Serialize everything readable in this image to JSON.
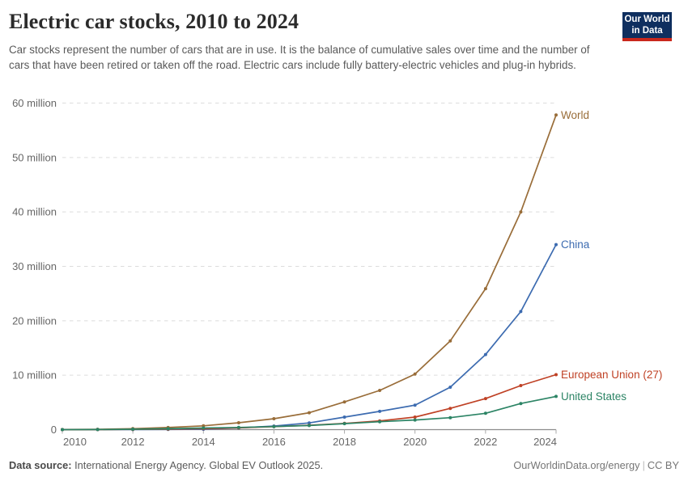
{
  "header": {
    "title": "Electric car stocks, 2010 to 2024",
    "subtitle": "Car stocks represent the number of cars that are in use. It is the balance of cumulative sales over time and the number of cars that have been retired or taken off the road. Electric cars include fully battery-electric vehicles and plug-in hybrids."
  },
  "logo": {
    "line1": "Our World",
    "line2": "in Data",
    "bg_color": "#0f2f5f",
    "bar_color": "#c9281c"
  },
  "footer": {
    "source_label": "Data source:",
    "source_text": " International Energy Agency. Global EV Outlook 2025.",
    "link": "OurWorldinData.org/energy",
    "separator": "|",
    "license": "CC BY"
  },
  "chart_data": {
    "type": "line",
    "title": "Electric car stocks, 2010 to 2024",
    "unit": "million vehicles",
    "x": [
      2010,
      2011,
      2012,
      2013,
      2014,
      2015,
      2016,
      2017,
      2018,
      2019,
      2020,
      2021,
      2022,
      2023,
      2024
    ],
    "xlim": [
      2010,
      2024
    ],
    "ylim": [
      0,
      60
    ],
    "xticks": [
      2010,
      2012,
      2014,
      2016,
      2018,
      2020,
      2022,
      2024
    ],
    "yticks": [
      {
        "value": 0,
        "label": "0"
      },
      {
        "value": 10,
        "label": "10 million"
      },
      {
        "value": 20,
        "label": "20 million"
      },
      {
        "value": 30,
        "label": "30 million"
      },
      {
        "value": 40,
        "label": "40 million"
      },
      {
        "value": 50,
        "label": "50 million"
      },
      {
        "value": 60,
        "label": "60 million"
      }
    ],
    "grid": "horizontal-dashed",
    "legend_position": "line-end-labels",
    "series": [
      {
        "name": "World",
        "color": "#996D39",
        "values": [
          0.02,
          0.06,
          0.18,
          0.38,
          0.7,
          1.26,
          2.0,
          3.1,
          5.1,
          7.2,
          10.2,
          16.3,
          25.9,
          40.0,
          57.8
        ]
      },
      {
        "name": "China",
        "color": "#3C6BB0",
        "values": [
          0.0,
          0.01,
          0.02,
          0.03,
          0.08,
          0.31,
          0.65,
          1.23,
          2.3,
          3.35,
          4.5,
          7.8,
          13.8,
          21.7,
          34.0
        ]
      },
      {
        "name": "European Union (27)",
        "color": "#BF4125",
        "values": [
          0.0,
          0.01,
          0.04,
          0.09,
          0.18,
          0.33,
          0.55,
          0.8,
          1.15,
          1.6,
          2.3,
          3.9,
          5.7,
          8.1,
          10.1
        ]
      },
      {
        "name": "United States",
        "color": "#2C8465",
        "values": [
          0.0,
          0.02,
          0.07,
          0.17,
          0.29,
          0.4,
          0.56,
          0.76,
          1.1,
          1.45,
          1.77,
          2.2,
          3.0,
          4.8,
          6.1
        ]
      }
    ],
    "axis_color": "#8c8c8c",
    "gridline_color": "#dcdcdc",
    "tick_label_color": "#666666"
  }
}
